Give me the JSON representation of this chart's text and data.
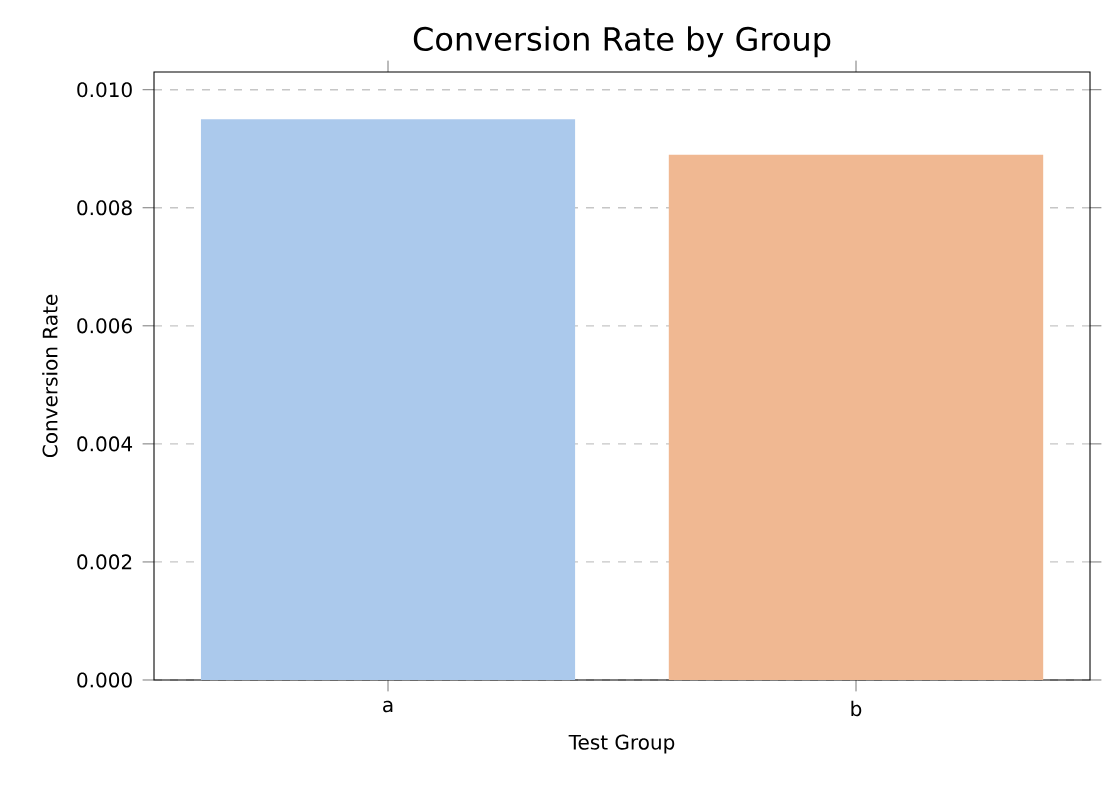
{
  "chart_data": {
    "type": "bar",
    "title": "Conversion Rate by Group",
    "xlabel": "Test Group",
    "ylabel": "Conversion Rate",
    "categories": [
      "a",
      "b"
    ],
    "values": [
      0.0095,
      0.0089
    ],
    "colors": [
      "#abc9ec",
      "#f0b892"
    ],
    "ylim": [
      0,
      0.0103
    ],
    "yticks": [
      {
        "value": 0,
        "label": "0.000"
      },
      0.002,
      0.004,
      0.006,
      0.008,
      {
        "value": 0.01,
        "label": "0.010"
      }
    ],
    "grid": "y",
    "line_style": "dashed"
  }
}
